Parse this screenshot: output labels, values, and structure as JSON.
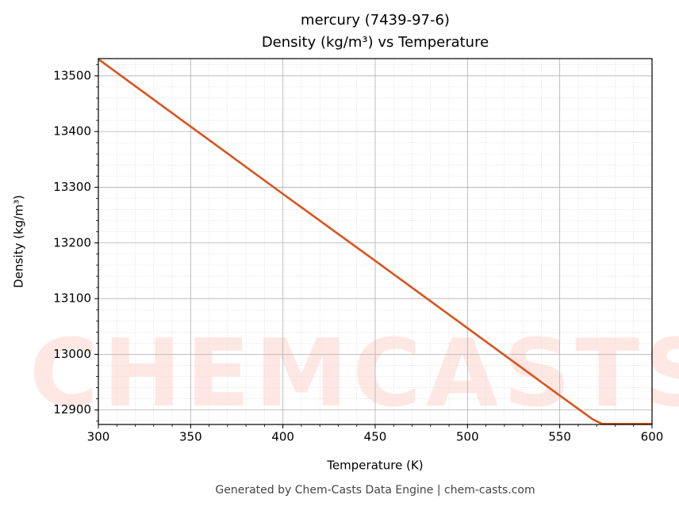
{
  "chart_data": {
    "type": "line",
    "title": "mercury (7439-97-6)",
    "subtitle": "Density (kg/m³) vs Temperature",
    "x_label": "Temperature (K)",
    "y_label": "Density (kg/m³)",
    "footer": "Generated by Chem-Casts Data Engine | chem-casts.com",
    "watermark": "CHEMCASTS",
    "x": [
      300,
      350,
      400,
      450,
      500,
      550,
      568,
      573,
      600
    ],
    "series": [
      {
        "name": "Density",
        "color": "#d9541e",
        "values": [
          13530,
          13409,
          13288,
          13168,
          13047,
          12926,
          12883,
          12875,
          12875
        ]
      }
    ],
    "xlim": [
      300,
      600
    ],
    "xticks": [
      300,
      350,
      400,
      450,
      500,
      550,
      600
    ],
    "ylim": [
      12874,
      13531
    ],
    "yticks": [
      12900,
      13000,
      13100,
      13200,
      13300,
      13400,
      13500
    ],
    "grid": true,
    "minor_grid": true,
    "minor_divisions": 5
  }
}
